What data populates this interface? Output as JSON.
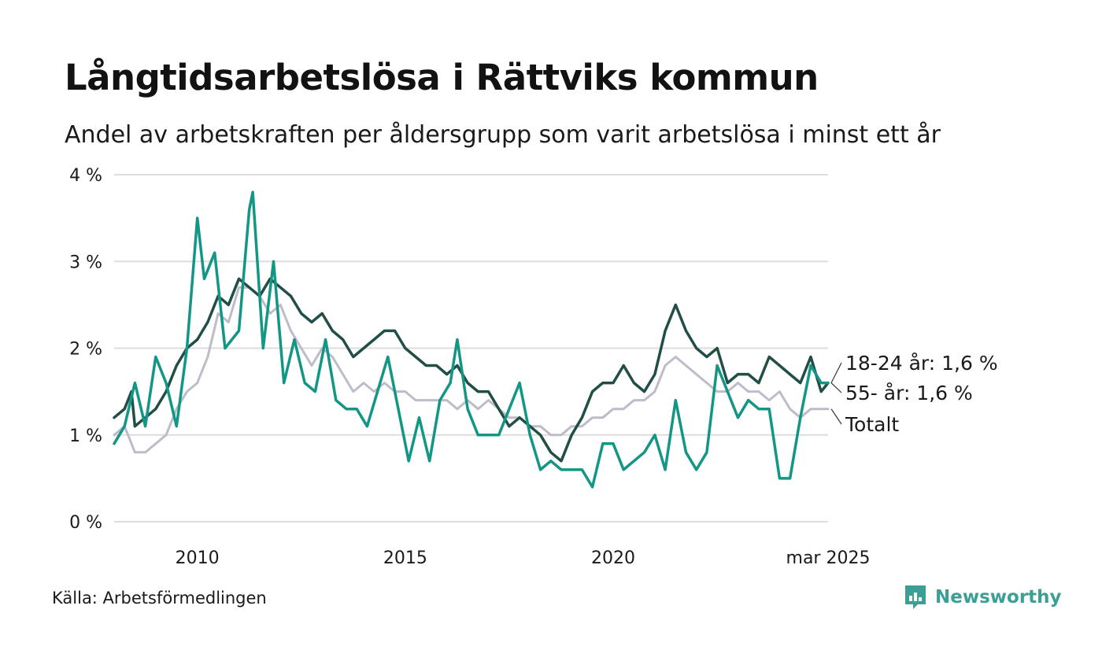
{
  "title": "Långtidsarbetslösa i Rättviks kommun",
  "subtitle": "Andel av arbetskraften per åldersgrupp som varit arbetslösa i minst ett år",
  "source": "Källa: Arbetsförmedlingen",
  "brand": "Newsworthy",
  "colors": {
    "youth": "#139685",
    "senior": "#224e48",
    "total": "#bfbcca",
    "grid": "#dddddd",
    "brand": "#3a9f94"
  },
  "chart_data": {
    "type": "line",
    "title": "Långtidsarbetslösa i Rättviks kommun",
    "ylim": [
      0,
      4
    ],
    "y_unit": "%",
    "y_ticks": [
      {
        "value": 0,
        "label": "0 %"
      },
      {
        "value": 1,
        "label": "1 %"
      },
      {
        "value": 2,
        "label": "2 %"
      },
      {
        "value": 3,
        "label": "3 %"
      },
      {
        "value": 4,
        "label": "4 %"
      }
    ],
    "x_range": [
      "2008-01",
      "2025-03"
    ],
    "x_ticks": [
      {
        "date": "2010-01",
        "label": "2010"
      },
      {
        "date": "2015-01",
        "label": "2015"
      },
      {
        "date": "2020-01",
        "label": "2020"
      },
      {
        "date": "2025-03",
        "label": "mar 2025"
      }
    ],
    "grid": true,
    "legend": "end-of-line labels",
    "series": [
      {
        "key": "total",
        "name": "Totalt",
        "end_label": "Totalt",
        "points": [
          [
            "2008-01",
            1.0
          ],
          [
            "2008-04",
            1.1
          ],
          [
            "2008-07",
            0.8
          ],
          [
            "2008-10",
            0.8
          ],
          [
            "2009-01",
            0.9
          ],
          [
            "2009-04",
            1.0
          ],
          [
            "2009-07",
            1.3
          ],
          [
            "2009-10",
            1.5
          ],
          [
            "2010-01",
            1.6
          ],
          [
            "2010-04",
            1.9
          ],
          [
            "2010-07",
            2.4
          ],
          [
            "2010-10",
            2.3
          ],
          [
            "2011-01",
            2.7
          ],
          [
            "2011-04",
            2.7
          ],
          [
            "2011-07",
            2.6
          ],
          [
            "2011-10",
            2.4
          ],
          [
            "2012-01",
            2.5
          ],
          [
            "2012-04",
            2.2
          ],
          [
            "2012-07",
            2.0
          ],
          [
            "2012-10",
            1.8
          ],
          [
            "2013-01",
            2.0
          ],
          [
            "2013-04",
            1.9
          ],
          [
            "2013-07",
            1.7
          ],
          [
            "2013-10",
            1.5
          ],
          [
            "2014-01",
            1.6
          ],
          [
            "2014-04",
            1.5
          ],
          [
            "2014-07",
            1.6
          ],
          [
            "2014-10",
            1.5
          ],
          [
            "2015-01",
            1.5
          ],
          [
            "2015-04",
            1.4
          ],
          [
            "2015-07",
            1.4
          ],
          [
            "2015-10",
            1.4
          ],
          [
            "2016-01",
            1.4
          ],
          [
            "2016-04",
            1.3
          ],
          [
            "2016-07",
            1.4
          ],
          [
            "2016-10",
            1.3
          ],
          [
            "2017-01",
            1.4
          ],
          [
            "2017-04",
            1.3
          ],
          [
            "2017-07",
            1.2
          ],
          [
            "2017-10",
            1.2
          ],
          [
            "2018-01",
            1.1
          ],
          [
            "2018-04",
            1.1
          ],
          [
            "2018-07",
            1.0
          ],
          [
            "2018-10",
            1.0
          ],
          [
            "2019-01",
            1.1
          ],
          [
            "2019-04",
            1.1
          ],
          [
            "2019-07",
            1.2
          ],
          [
            "2019-10",
            1.2
          ],
          [
            "2020-01",
            1.3
          ],
          [
            "2020-04",
            1.3
          ],
          [
            "2020-07",
            1.4
          ],
          [
            "2020-10",
            1.4
          ],
          [
            "2021-01",
            1.5
          ],
          [
            "2021-04",
            1.8
          ],
          [
            "2021-07",
            1.9
          ],
          [
            "2021-10",
            1.8
          ],
          [
            "2022-01",
            1.7
          ],
          [
            "2022-04",
            1.6
          ],
          [
            "2022-07",
            1.5
          ],
          [
            "2022-10",
            1.5
          ],
          [
            "2023-01",
            1.6
          ],
          [
            "2023-04",
            1.5
          ],
          [
            "2023-07",
            1.5
          ],
          [
            "2023-10",
            1.4
          ],
          [
            "2024-01",
            1.5
          ],
          [
            "2024-04",
            1.3
          ],
          [
            "2024-07",
            1.2
          ],
          [
            "2024-10",
            1.3
          ],
          [
            "2025-01",
            1.3
          ],
          [
            "2025-03",
            1.3
          ]
        ]
      },
      {
        "key": "senior",
        "name": "55- år",
        "end_label": "55- år: 1,6 %",
        "points": [
          [
            "2008-01",
            1.2
          ],
          [
            "2008-04",
            1.3
          ],
          [
            "2008-06",
            1.5
          ],
          [
            "2008-07",
            1.1
          ],
          [
            "2008-10",
            1.2
          ],
          [
            "2009-01",
            1.3
          ],
          [
            "2009-04",
            1.5
          ],
          [
            "2009-07",
            1.8
          ],
          [
            "2009-10",
            2.0
          ],
          [
            "2010-01",
            2.1
          ],
          [
            "2010-04",
            2.3
          ],
          [
            "2010-07",
            2.6
          ],
          [
            "2010-10",
            2.5
          ],
          [
            "2011-01",
            2.8
          ],
          [
            "2011-04",
            2.7
          ],
          [
            "2011-07",
            2.6
          ],
          [
            "2011-10",
            2.8
          ],
          [
            "2012-01",
            2.7
          ],
          [
            "2012-04",
            2.6
          ],
          [
            "2012-07",
            2.4
          ],
          [
            "2012-10",
            2.3
          ],
          [
            "2013-01",
            2.4
          ],
          [
            "2013-04",
            2.2
          ],
          [
            "2013-07",
            2.1
          ],
          [
            "2013-10",
            1.9
          ],
          [
            "2014-01",
            2.0
          ],
          [
            "2014-04",
            2.1
          ],
          [
            "2014-07",
            2.2
          ],
          [
            "2014-10",
            2.2
          ],
          [
            "2015-01",
            2.0
          ],
          [
            "2015-04",
            1.9
          ],
          [
            "2015-07",
            1.8
          ],
          [
            "2015-10",
            1.8
          ],
          [
            "2016-01",
            1.7
          ],
          [
            "2016-04",
            1.8
          ],
          [
            "2016-07",
            1.6
          ],
          [
            "2016-10",
            1.5
          ],
          [
            "2017-01",
            1.5
          ],
          [
            "2017-04",
            1.3
          ],
          [
            "2017-07",
            1.1
          ],
          [
            "2017-10",
            1.2
          ],
          [
            "2018-01",
            1.1
          ],
          [
            "2018-04",
            1.0
          ],
          [
            "2018-07",
            0.8
          ],
          [
            "2018-10",
            0.7
          ],
          [
            "2019-01",
            1.0
          ],
          [
            "2019-04",
            1.2
          ],
          [
            "2019-07",
            1.5
          ],
          [
            "2019-10",
            1.6
          ],
          [
            "2020-01",
            1.6
          ],
          [
            "2020-04",
            1.8
          ],
          [
            "2020-07",
            1.6
          ],
          [
            "2020-10",
            1.5
          ],
          [
            "2021-01",
            1.7
          ],
          [
            "2021-04",
            2.2
          ],
          [
            "2021-07",
            2.5
          ],
          [
            "2021-10",
            2.2
          ],
          [
            "2022-01",
            2.0
          ],
          [
            "2022-04",
            1.9
          ],
          [
            "2022-07",
            2.0
          ],
          [
            "2022-10",
            1.6
          ],
          [
            "2023-01",
            1.7
          ],
          [
            "2023-04",
            1.7
          ],
          [
            "2023-07",
            1.6
          ],
          [
            "2023-10",
            1.9
          ],
          [
            "2024-01",
            1.8
          ],
          [
            "2024-04",
            1.7
          ],
          [
            "2024-07",
            1.6
          ],
          [
            "2024-10",
            1.9
          ],
          [
            "2025-01",
            1.5
          ],
          [
            "2025-03",
            1.6
          ]
        ]
      },
      {
        "key": "youth",
        "name": "18-24 år",
        "end_label": "18-24 år: 1,6 %",
        "points": [
          [
            "2008-01",
            0.9
          ],
          [
            "2008-04",
            1.1
          ],
          [
            "2008-07",
            1.6
          ],
          [
            "2008-10",
            1.1
          ],
          [
            "2009-01",
            1.9
          ],
          [
            "2009-04",
            1.6
          ],
          [
            "2009-07",
            1.1
          ],
          [
            "2009-10",
            2.0
          ],
          [
            "2010-01",
            3.5
          ],
          [
            "2010-03",
            2.8
          ],
          [
            "2010-06",
            3.1
          ],
          [
            "2010-09",
            2.0
          ],
          [
            "2011-01",
            2.2
          ],
          [
            "2011-04",
            3.6
          ],
          [
            "2011-05",
            3.8
          ],
          [
            "2011-08",
            2.0
          ],
          [
            "2011-11",
            3.0
          ],
          [
            "2012-02",
            1.6
          ],
          [
            "2012-05",
            2.1
          ],
          [
            "2012-08",
            1.6
          ],
          [
            "2012-11",
            1.5
          ],
          [
            "2013-02",
            2.1
          ],
          [
            "2013-05",
            1.4
          ],
          [
            "2013-08",
            1.3
          ],
          [
            "2013-11",
            1.3
          ],
          [
            "2014-02",
            1.1
          ],
          [
            "2014-05",
            1.5
          ],
          [
            "2014-08",
            1.9
          ],
          [
            "2014-11",
            1.3
          ],
          [
            "2015-02",
            0.7
          ],
          [
            "2015-05",
            1.2
          ],
          [
            "2015-08",
            0.7
          ],
          [
            "2015-11",
            1.4
          ],
          [
            "2016-02",
            1.6
          ],
          [
            "2016-04",
            2.1
          ],
          [
            "2016-07",
            1.3
          ],
          [
            "2016-10",
            1.0
          ],
          [
            "2017-01",
            1.0
          ],
          [
            "2017-04",
            1.0
          ],
          [
            "2017-07",
            1.3
          ],
          [
            "2017-10",
            1.6
          ],
          [
            "2018-01",
            1.0
          ],
          [
            "2018-04",
            0.6
          ],
          [
            "2018-07",
            0.7
          ],
          [
            "2018-10",
            0.6
          ],
          [
            "2019-01",
            0.6
          ],
          [
            "2019-04",
            0.6
          ],
          [
            "2019-07",
            0.4
          ],
          [
            "2019-10",
            0.9
          ],
          [
            "2020-01",
            0.9
          ],
          [
            "2020-04",
            0.6
          ],
          [
            "2020-07",
            0.7
          ],
          [
            "2020-10",
            0.8
          ],
          [
            "2021-01",
            1.0
          ],
          [
            "2021-04",
            0.6
          ],
          [
            "2021-07",
            1.4
          ],
          [
            "2021-10",
            0.8
          ],
          [
            "2022-01",
            0.6
          ],
          [
            "2022-04",
            0.8
          ],
          [
            "2022-07",
            1.8
          ],
          [
            "2022-10",
            1.5
          ],
          [
            "2023-01",
            1.2
          ],
          [
            "2023-04",
            1.4
          ],
          [
            "2023-07",
            1.3
          ],
          [
            "2023-10",
            1.3
          ],
          [
            "2024-01",
            0.5
          ],
          [
            "2024-04",
            0.5
          ],
          [
            "2024-07",
            1.2
          ],
          [
            "2024-10",
            1.8
          ],
          [
            "2025-01",
            1.6
          ],
          [
            "2025-03",
            1.6
          ]
        ]
      }
    ]
  }
}
